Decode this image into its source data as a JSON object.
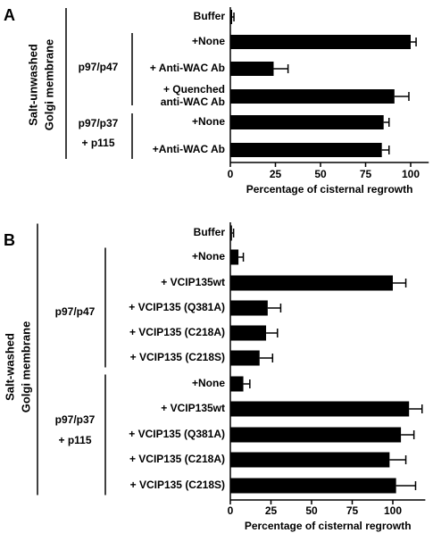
{
  "chart_data": [
    {
      "type": "bar",
      "orientation": "horizontal",
      "panel_label": "A",
      "group_label": [
        "Salt-unwashed",
        "Golgi membrane"
      ],
      "subgroups": [
        {
          "label": [
            "p97/p47"
          ],
          "rows": [
            1,
            3
          ]
        },
        {
          "label": [
            "p97/p37",
            "+ p115"
          ],
          "rows": [
            4,
            5
          ]
        }
      ],
      "categories": [
        [
          "Buffer"
        ],
        [
          "+None"
        ],
        [
          "+ Anti-WAC Ab"
        ],
        [
          "+ Quenched",
          "anti-WAC Ab"
        ],
        [
          "+None"
        ],
        [
          "+Anti-WAC Ab"
        ]
      ],
      "values": [
        1,
        100,
        24,
        91,
        85,
        84
      ],
      "errors": [
        1,
        3,
        8,
        8,
        3,
        4
      ],
      "xlabel": "Percentage of cisternal regrowth",
      "xlim": [
        0,
        110
      ],
      "xticks": [
        0,
        25,
        50,
        75,
        100
      ],
      "grid": false
    },
    {
      "type": "bar",
      "orientation": "horizontal",
      "panel_label": "B",
      "group_label": [
        "Salt-washed",
        "Golgi membrane"
      ],
      "subgroups": [
        {
          "label": [
            "p97/p47"
          ],
          "rows": [
            1,
            5
          ]
        },
        {
          "label": [
            "p97/p37",
            "+ p115"
          ],
          "rows": [
            6,
            10
          ]
        }
      ],
      "categories": [
        [
          "Buffer"
        ],
        [
          "+None"
        ],
        [
          "+ VCIP135wt"
        ],
        [
          "+ VCIP135 (Q381A)"
        ],
        [
          "+ VCIP135 (C218A)"
        ],
        [
          "+ VCIP135 (C218S)"
        ],
        [
          "+None"
        ],
        [
          "+ VCIP135wt"
        ],
        [
          "+ VCIP135 (Q381A)"
        ],
        [
          "+ VCIP135 (C218A)"
        ],
        [
          "+ VCIP135 (C218S)"
        ]
      ],
      "values": [
        1,
        5,
        100,
        23,
        22,
        18,
        8,
        110,
        105,
        98,
        102
      ],
      "errors": [
        1,
        3,
        8,
        8,
        7,
        8,
        4,
        8,
        8,
        10,
        12
      ],
      "xlabel": "Percentage of cisternal regrowth",
      "xlim": [
        0,
        120
      ],
      "xticks": [
        0,
        25,
        50,
        75,
        100
      ],
      "grid": false
    }
  ]
}
